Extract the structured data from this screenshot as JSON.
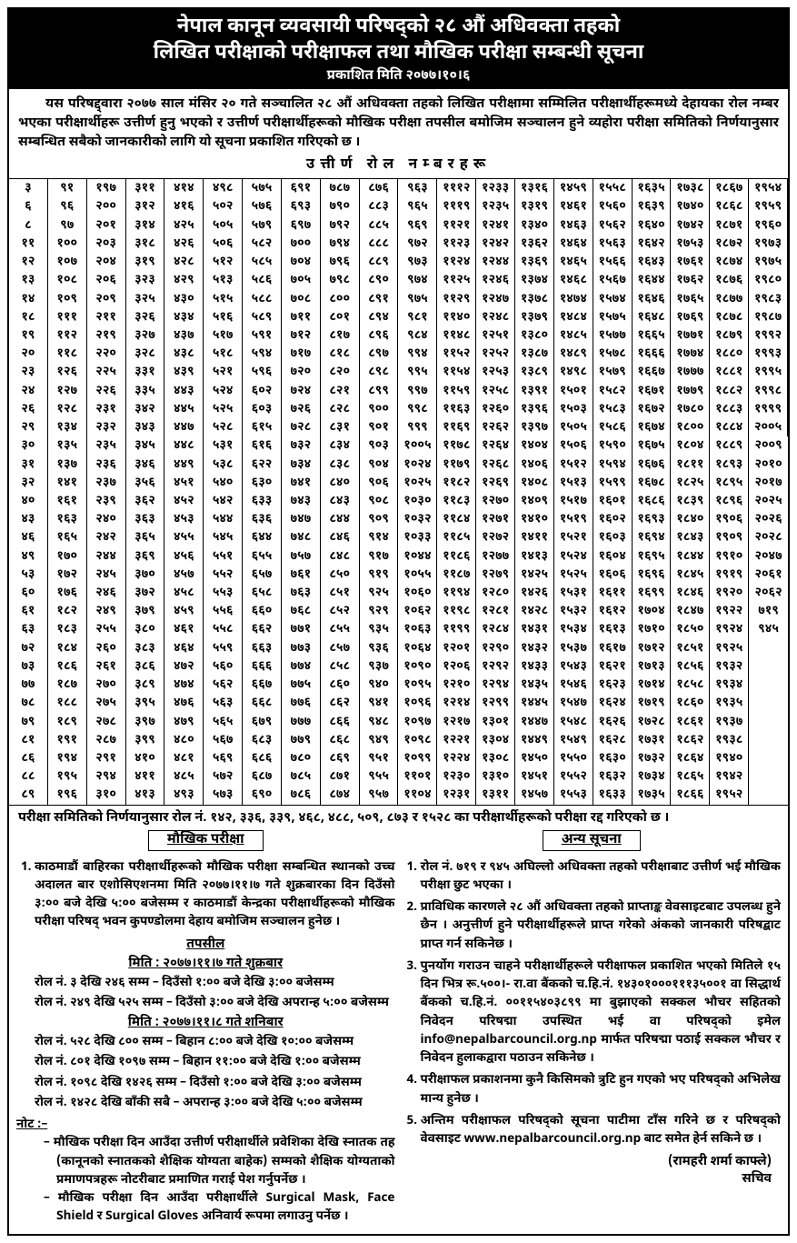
{
  "header": {
    "line1": "नेपाल कानून व्यवसायी परिषद्को २८ औं अधिवक्ता तहको",
    "line2": "लिखित परीक्षाको परीक्षाफल तथा मौखिक परीक्षा सम्बन्धी सूचना",
    "line3": "प्रकाशित मिति २०७७।१०।६"
  },
  "intro": "यस परिषद्द्वारा २०७७ साल मंसिर २० गते सञ्चालित २८ औं अधिवक्ता तहको लिखित परीक्षामा सम्मिलित परीक्षार्थीहरूमध्ये देहायका रोल नम्बर भएका परीक्षार्थीहरू उत्तीर्ण हुनु भएको र उत्तीर्ण परीक्षार्थीहरूको मौखिक परीक्षा तपसील बमोजिम सञ्चालन हुने व्यहोरा परीक्षा समितिको निर्णयानुसार सम्बन्धित सबैको जानकारीको लागि यो सूचना प्रकाशित गरिएको छ ।",
  "pass_title": "उत्तीर्ण रोल नम्बरहरू",
  "rolls": [
    "३",
    "६",
    "८",
    "११",
    "१२",
    "१३",
    "१४",
    "१८",
    "१९",
    "२०",
    "२३",
    "२४",
    "२६",
    "२९",
    "३०",
    "३१",
    "३२",
    "४०",
    "४३",
    "४६",
    "४९",
    "५३",
    "६०",
    "६१",
    "६३",
    "७२",
    "७३",
    "७७",
    "७८",
    "७९",
    "८१",
    "८६",
    "८८",
    "८९",
    "९१",
    "९६",
    "९७",
    "१००",
    "१०७",
    "१०८",
    "१०९",
    "१११",
    "११२",
    "११८",
    "१२६",
    "१२७",
    "१२८",
    "१३४",
    "१३५",
    "१३७",
    "१४१",
    "१६१",
    "१६३",
    "१६५",
    "१७०",
    "१७२",
    "१७६",
    "१८२",
    "१८३",
    "१८४",
    "१८६",
    "१८७",
    "१८८",
    "१८९",
    "१९१",
    "१९४",
    "१९५",
    "१९६",
    "१९७",
    "२००",
    "२०१",
    "२०३",
    "२०४",
    "२०६",
    "२०९",
    "२११",
    "२१९",
    "२२०",
    "२२५",
    "२२६",
    "२३१",
    "२३२",
    "२३५",
    "२३६",
    "२३७",
    "२३९",
    "२४०",
    "२४२",
    "२४४",
    "२४५",
    "२४६",
    "२४९",
    "२५५",
    "२६०",
    "२६१",
    "२७०",
    "२७५",
    "२७८",
    "२८७",
    "२९१",
    "२९४",
    "३१०",
    "३११",
    "३१२",
    "३१४",
    "३१८",
    "३१९",
    "३२३",
    "३२५",
    "३२६",
    "३२७",
    "३२८",
    "३३१",
    "३३५",
    "३४२",
    "३४३",
    "३४५",
    "३४६",
    "३५६",
    "३६२",
    "३६३",
    "३६५",
    "३६९",
    "३७०",
    "३७२",
    "३७९",
    "३८०",
    "३८३",
    "३८६",
    "३८९",
    "३९५",
    "३९७",
    "३९९",
    "४१०",
    "४११",
    "४१३",
    "४१४",
    "४१६",
    "४२५",
    "४२६",
    "४२८",
    "४२९",
    "४३०",
    "४३४",
    "४३७",
    "४३८",
    "४३९",
    "४४३",
    "४४५",
    "४४७",
    "४४८",
    "४४९",
    "४५१",
    "४५२",
    "४५३",
    "४५५",
    "४५६",
    "४५७",
    "४५८",
    "४५९",
    "४६१",
    "४६४",
    "४७२",
    "४७४",
    "४७६",
    "४७९",
    "४८०",
    "४८१",
    "४८५",
    "४९३",
    "४९८",
    "५०२",
    "५०५",
    "५०६",
    "५१२",
    "५१३",
    "५१५",
    "५१६",
    "५१७",
    "५१८",
    "५२१",
    "५२४",
    "५२५",
    "५२८",
    "५३१",
    "५३८",
    "५४०",
    "५४२",
    "५४४",
    "५४५",
    "५५१",
    "५५२",
    "५५३",
    "५५६",
    "५५८",
    "५५९",
    "५६०",
    "५६२",
    "५६३",
    "५६५",
    "५६७",
    "५६९",
    "५७२",
    "५७३",
    "५७५",
    "५७६",
    "५७९",
    "५८२",
    "५८५",
    "५८६",
    "५८८",
    "५८९",
    "५९१",
    "५९४",
    "५९६",
    "६०२",
    "६०३",
    "६१५",
    "६१६",
    "६२२",
    "६३०",
    "६३३",
    "६३६",
    "६४४",
    "६५५",
    "६५७",
    "६५८",
    "६६०",
    "६६२",
    "६६३",
    "६६६",
    "६६७",
    "६६८",
    "६७९",
    "६८३",
    "६८६",
    "६८७",
    "६९०",
    "६९१",
    "६९३",
    "६९७",
    "७००",
    "७०४",
    "७०५",
    "७०८",
    "७११",
    "७१२",
    "७१७",
    "७२०",
    "७२४",
    "७२६",
    "७२८",
    "७३२",
    "७३४",
    "७४१",
    "७४३",
    "७४७",
    "७४८",
    "७५७",
    "७६१",
    "७६३",
    "७६८",
    "७७१",
    "७७३",
    "७७४",
    "७७५",
    "७७६",
    "७७७",
    "७७९",
    "७८०",
    "७८५",
    "७८६",
    "७८७",
    "७९०",
    "७९२",
    "७९४",
    "७९६",
    "७९८",
    "८००",
    "८०१",
    "८१७",
    "८१८",
    "८२०",
    "८२१",
    "८२८",
    "८३१",
    "८३४",
    "८३८",
    "८४०",
    "८४३",
    "८४४",
    "८४६",
    "८४८",
    "८५०",
    "८५१",
    "८५२",
    "८५५",
    "८५७",
    "८५८",
    "८६०",
    "८६२",
    "८६६",
    "८६८",
    "८६९",
    "८७१",
    "८७४",
    "८७६",
    "८८३",
    "८८५",
    "८८८",
    "८८९",
    "८९०",
    "८९१",
    "८९४",
    "८९६",
    "८९७",
    "८९८",
    "८९९",
    "९००",
    "९०१",
    "९०३",
    "९०४",
    "९०६",
    "९०८",
    "९०९",
    "९१४",
    "९१७",
    "९१९",
    "९२५",
    "९२९",
    "९३५",
    "९३६",
    "९३७",
    "९४०",
    "९४१",
    "९४८",
    "९४९",
    "९५१",
    "९५५",
    "९५७",
    "९६३",
    "९६५",
    "९६९",
    "९७२",
    "९७३",
    "९७४",
    "९७५",
    "९८१",
    "९८४",
    "९९४",
    "९९५",
    "९९७",
    "९९८",
    "९९९",
    "१००५",
    "१०२४",
    "१०२५",
    "१०३०",
    "१०३२",
    "१०३३",
    "१०४४",
    "१०५५",
    "१०६०",
    "१०६२",
    "१०६३",
    "१०६४",
    "१०९०",
    "१०९५",
    "१०९६",
    "१०९७",
    "१०९८",
    "१०९९",
    "११०१",
    "११०४",
    "१११२",
    "१११९",
    "११२१",
    "११२३",
    "११२४",
    "११२५",
    "११२९",
    "११४०",
    "११४८",
    "११५२",
    "११५४",
    "११५९",
    "११६३",
    "११६९",
    "११७८",
    "११७९",
    "११८२",
    "११८३",
    "११८४",
    "११८५",
    "११८६",
    "११८७",
    "११९४",
    "११९८",
    "११९९",
    "१२०१",
    "१२०६",
    "१२१०",
    "१२१४",
    "१२१७",
    "१२२१",
    "१२२४",
    "१२३०",
    "१२३१",
    "१२३३",
    "१२३५",
    "१२४१",
    "१२४२",
    "१२४४",
    "१२४६",
    "१२४७",
    "१२४८",
    "१२५१",
    "१२५२",
    "१२५३",
    "१२५८",
    "१२६०",
    "१२६२",
    "१२६४",
    "१२६८",
    "१२६९",
    "१२७०",
    "१२७१",
    "१२७२",
    "१२७७",
    "१२७९",
    "१२८०",
    "१२८१",
    "१२८४",
    "१२९०",
    "१२९२",
    "१२९४",
    "१२९९",
    "१३०१",
    "१३०४",
    "१३०८",
    "१३१०",
    "१३११",
    "१३१६",
    "१३१९",
    "१३४०",
    "१३६२",
    "१३६९",
    "१३७४",
    "१३७८",
    "१३७९",
    "१३८०",
    "१३८७",
    "१३८९",
    "१३९१",
    "१३९६",
    "१३९७",
    "१४०४",
    "१४०६",
    "१४०८",
    "१४०९",
    "१४१०",
    "१४११",
    "१४१३",
    "१४२५",
    "१४२६",
    "१४२८",
    "१४३१",
    "१४३२",
    "१४३३",
    "१४३५",
    "१४४५",
    "१४४७",
    "१४४९",
    "१४५०",
    "१४५१",
    "१४५७",
    "१४५९",
    "१४६१",
    "१४६३",
    "१४६४",
    "१४६५",
    "१४६८",
    "१४७४",
    "१४८४",
    "१४८५",
    "१४८९",
    "१४९८",
    "१५०१",
    "१५०३",
    "१५०५",
    "१५०६",
    "१५१२",
    "१५१३",
    "१५१७",
    "१५१९",
    "१५२१",
    "१५२४",
    "१५२५",
    "१५३१",
    "१५३२",
    "१५३४",
    "१५३७",
    "१५४३",
    "१५४६",
    "१५४७",
    "१५४८",
    "१५४९",
    "१५५०",
    "१५५२",
    "१५५३",
    "१५५८",
    "१५६०",
    "१५६२",
    "१५६३",
    "१५६६",
    "१५६७",
    "१५७४",
    "१५७५",
    "१५७७",
    "१५७८",
    "१५७९",
    "१५८२",
    "१५८३",
    "१५८६",
    "१५९०",
    "१५९४",
    "१५९९",
    "१६०१",
    "१६०२",
    "१६०३",
    "१६०४",
    "१६०६",
    "१६११",
    "१६१२",
    "१६१३",
    "१६१७",
    "१६२१",
    "१६२३",
    "१६२४",
    "१६२६",
    "१६२८",
    "१६३०",
    "१६३२",
    "१६३३",
    "१६३५",
    "१६३९",
    "१६४०",
    "१६४२",
    "१६४३",
    "१६४४",
    "१६४६",
    "१६४८",
    "१६६५",
    "१६६६",
    "१६६७",
    "१६७१",
    "१६७२",
    "१६७४",
    "१६७५",
    "१६७६",
    "१६७८",
    "१६८६",
    "१६९३",
    "१६९४",
    "१६९५",
    "१६९६",
    "१६९९",
    "१७०४",
    "१७१०",
    "१७१२",
    "१७१३",
    "१७१४",
    "१७१९",
    "१७२८",
    "१७३१",
    "१७३२",
    "१७३४",
    "१७३५",
    "१७३८",
    "१७४०",
    "१७४२",
    "१७५३",
    "१७६१",
    "१७६२",
    "१७६५",
    "१७६९",
    "१७७१",
    "१७७४",
    "१७७७",
    "१७७९",
    "१७८०",
    "१८००",
    "१८०४",
    "१८११",
    "१८२५",
    "१८३९",
    "१८४०",
    "१८४३",
    "१८४४",
    "१८४५",
    "१८४६",
    "१८४७",
    "१८५०",
    "१८५१",
    "१८५६",
    "१८५८",
    "१८६०",
    "१८६१",
    "१८६२",
    "१८६४",
    "१८६५",
    "१८६६",
    "१८६७",
    "१८६८",
    "१८७१",
    "१८७२",
    "१८७४",
    "१८७६",
    "१८७७",
    "१८७८",
    "१८७९",
    "१८८०",
    "१८८१",
    "१८८२",
    "१८८३",
    "१८८४",
    "१८८९",
    "१८९३",
    "१८९५",
    "१८९६",
    "१९०६",
    "१९०९",
    "१९१०",
    "१९१९",
    "१९२०",
    "१९२२",
    "१९२४",
    "१९२५",
    "१९३२",
    "१९३४",
    "१९३५",
    "१९३७",
    "१९३८",
    "१९४०",
    "१९४२",
    "१९५२",
    "१९५४",
    "१९५९",
    "१९६०",
    "१९७३",
    "१९७५",
    "१९८०",
    "१९८३",
    "१९८७",
    "१९९२",
    "१९९३",
    "१९९५",
    "१९९८",
    "१९९९",
    "२००५",
    "२००९",
    "२०१०",
    "२०१७",
    "२०२५",
    "२०२६",
    "२०२८",
    "२०४७",
    "२०६१",
    "२०६२",
    "७१९",
    "९४५"
  ],
  "cancel": "परीक्षा समितिको निर्णयानुसार रोल नं. १४२, ३३६, ३३९, ४६८, ४८८, ५०९, ८७३ र १५२८ का परीक्षार्थीहरूको परीक्षा रद्द गरिएको छ ।",
  "oral": {
    "title": "मौखिक परीक्षा",
    "items": [
      "काठमाडौं बाहिरका परीक्षार्थीहरूको मौखिक परीक्षा सम्बन्धित स्थानको उच्च अदालत बार एशोसिएशनमा मिति २०७७।११।७ गते शुक्रबारका दिन दिउँसो ३:०० बजे देखि ५:०० बजेसम्म र काठमाडौं केन्द्रका परीक्षार्थीहरूको मौखिक परीक्षा परिषद् भवन कुपण्डोलमा देहाय बमोजिम सञ्चालन हुनेछ ।"
    ],
    "tapasil": "तपसील",
    "date1": "मिति : २०७७।११।७ गते शुक्रबार",
    "slot1": "रोल नं. ३ देखि २४६ सम्म – दिउँसो १:०० बजे देखि ३:०० बजेसम्म",
    "slot2": "रोल नं. २४९ देखि ५२५ सम्म – दिउँसो ३:०० बजे देखि अपरान्ह ५:०० बजेसम्म",
    "date2": "मिति : २०७७।११।८ गते शनिबार",
    "slot3": "रोल नं. ५२८ देखि ८०० सम्म – बिहान ८:०० बजे देखि १०:०० बजेसम्म",
    "slot4": "रोल नं. ८०१ देखि १०९७ सम्म – बिहान ११:०० बजे देखि १:०० बजेसम्म",
    "slot5": "रोल नं. १०९८ देखि १४२६ सम्म – दिउँसो १:०० बजे देखि ३:०० बजेसम्म",
    "slot6": "रोल नं. १४२८ देखि बाँकी सबै – अपरान्ह ३:०० बजे देखि ५:०० बजेसम्म",
    "note_label": "नोट :–",
    "note1": "मौखिक परीक्षा दिन आउँदा उत्तीर्ण परीक्षार्थीले प्रवेशिका देखि स्नातक तह (कानूनको स्नातकको शैक्षिक योग्यता बाहेक) सम्मको शैक्षिक योग्यताको प्रमाणपत्रहरू नोटरीबाट प्रमाणित गराई पेश गर्नुपर्नेछ ।",
    "note2": "मौखिक परीक्षा दिन आउँदा परीक्षार्थीले Surgical Mask, Face Shield र Surgical Gloves अनिवार्य रूपमा लगाउनु पर्नेछ ।"
  },
  "other": {
    "title": "अन्य सूचना",
    "items": [
      "रोल नं. ७१९ र ९४५ अघिल्लो अधिवक्ता तहको परीक्षाबाट उत्तीर्ण भई मौखिक परीक्षा छुट भएका ।",
      "प्राविधिक कारणले २८ औं अधिवक्ता तहको प्राप्ताङ्क वेवसाइटबाट उपलब्ध हुने छैन । अनुत्तीर्ण हुने परीक्षार्थीहरूले प्राप्त गरेको अंकको जानकारी परिषद्बाट प्राप्त गर्न सकिनेछ ।",
      "पुनर्योग गराउन चाहने परीक्षार्थीहरूले परीक्षाफल प्रकाशित भएको मितिले १५ दिन भित्र रू.५००।- रा.वा बैंकको च.हि.नं. १४३०१०००१११३५००१ वा सिद्धार्थ बैंकको च.हि.नं. ००११५४०३८९९ मा बुझाएको सक्कल भौचर सहितको निवेदन परिषद्मा उपस्थित भई वा परिषद्को इमेल info@nepalbarcouncil.org.np मार्फत परिषद्मा पठाई सक्कल भौचर र निवेदन हुलाकद्वारा पठाउन सकिनेछ ।",
      "परीक्षाफल प्रकाशनमा कुनै किसिमको त्रुटि हुन गएको भए परिषद्को अभिलेख मान्य हुनेछ ।",
      "अन्तिम परीक्षाफल परिषद्को सूचना पाटीमा टाँस गरिने छ र परिषद्को वेवसाइट www.nepalbarcouncil.org.np बाट समेत हेर्न सकिने छ ।"
    ]
  },
  "sign": {
    "name": "(रामहरी शर्मा काफ्ले)",
    "post": "सचिव"
  }
}
